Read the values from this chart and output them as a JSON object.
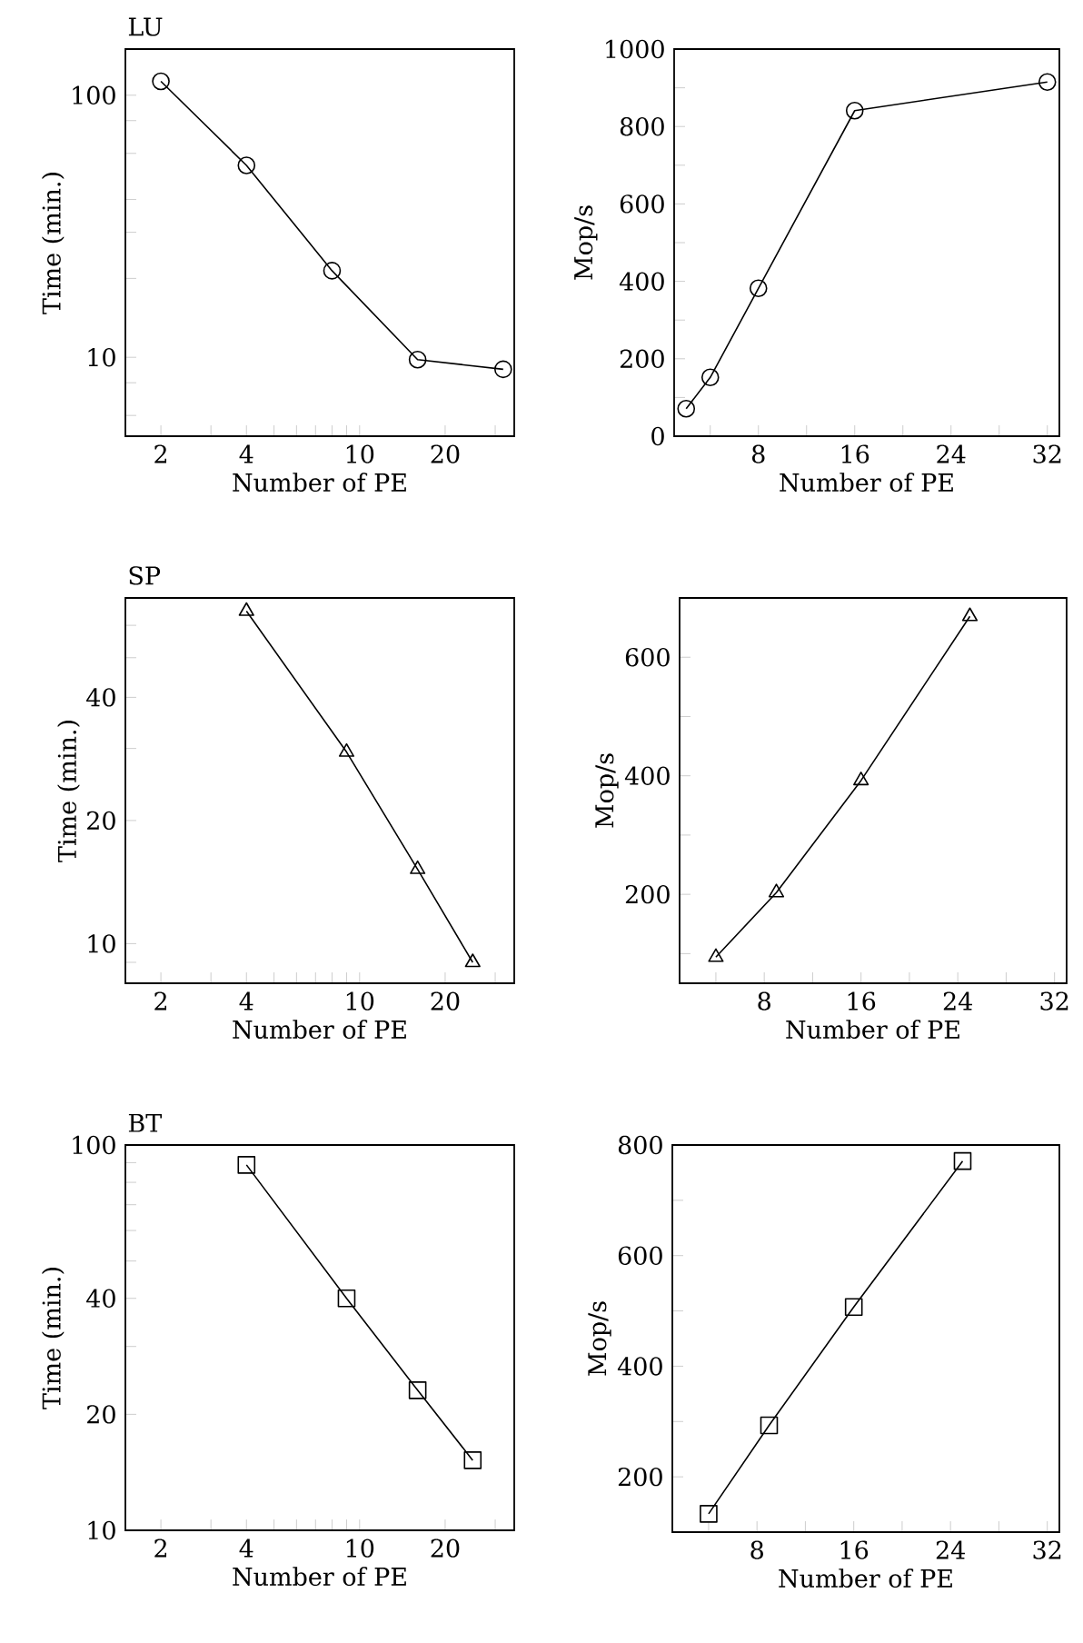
{
  "chart_data": [
    {
      "type": "line",
      "title": "LU",
      "xlabel": "Number of PE",
      "ylabel": "Time (min.)",
      "log": "xy",
      "marker": "circle",
      "x": [
        2,
        4,
        8,
        16,
        32
      ],
      "series": [
        {
          "color": "#000000",
          "values": [
            113,
            54,
            21.4,
            9.8,
            9.0
          ]
        }
      ],
      "xlim": [
        1.5,
        35
      ],
      "ylim": [
        5,
        150
      ],
      "xticks": [
        2,
        {
          "value": 3,
          "label": null
        },
        4,
        {
          "value": 5,
          "label": null
        },
        {
          "value": 6,
          "label": null
        },
        {
          "value": 7,
          "label": null
        },
        {
          "value": 8,
          "label": null
        },
        {
          "value": 9,
          "label": null
        },
        10,
        20,
        {
          "value": 30,
          "label": null
        }
      ],
      "yticks": [
        {
          "value": 6,
          "label": null
        },
        {
          "value": 8,
          "label": null
        },
        10,
        {
          "value": 20,
          "label": null
        },
        {
          "value": 30,
          "label": null
        },
        {
          "value": 40,
          "label": null
        },
        {
          "value": 60,
          "label": null
        },
        {
          "value": 80,
          "label": null
        },
        100
      ]
    },
    {
      "type": "line",
      "xlabel": "Number of PE",
      "ylabel": "Mop/s",
      "marker": "circle",
      "x": [
        2,
        4,
        8,
        16,
        32
      ],
      "series": [
        {
          "color": "#000000",
          "values": [
            71,
            152,
            382,
            841,
            915
          ]
        }
      ],
      "xlim": [
        1,
        33
      ],
      "ylim": [
        0,
        1000
      ],
      "xticks": [
        {
          "value": 4,
          "label": null
        },
        8,
        {
          "value": 12,
          "label": null
        },
        16,
        {
          "value": 20,
          "label": null
        },
        24,
        {
          "value": 28,
          "label": null
        },
        32
      ],
      "yticks": [
        0,
        {
          "value": 100,
          "label": null
        },
        200,
        {
          "value": 300,
          "label": null
        },
        400,
        {
          "value": 500,
          "label": null
        },
        600,
        {
          "value": 700,
          "label": null
        },
        800,
        {
          "value": 900,
          "label": null
        },
        1000
      ]
    },
    {
      "type": "line",
      "title": "SP",
      "xlabel": "Number of PE",
      "ylabel": "Time (min.)",
      "log": "xy",
      "marker": "triangle",
      "x": [
        4,
        9,
        16,
        25
      ],
      "series": [
        {
          "color": "#000000",
          "values": [
            65,
            29.4,
            15.2,
            9.0
          ]
        }
      ],
      "xlim": [
        1.5,
        35
      ],
      "ylim": [
        8,
        70
      ],
      "xticks": [
        2,
        {
          "value": 3,
          "label": null
        },
        4,
        {
          "value": 5,
          "label": null
        },
        {
          "value": 6,
          "label": null
        },
        {
          "value": 7,
          "label": null
        },
        {
          "value": 8,
          "label": null
        },
        {
          "value": 9,
          "label": null
        },
        10,
        20,
        {
          "value": 30,
          "label": null
        }
      ],
      "yticks": [
        {
          "value": 9,
          "label": null
        },
        10,
        20,
        {
          "value": 30,
          "label": null
        },
        40,
        {
          "value": 50,
          "label": null
        },
        {
          "value": 60,
          "label": null
        }
      ]
    },
    {
      "type": "line",
      "xlabel": "Number of PE",
      "ylabel": "Mop/s",
      "marker": "triangle",
      "x": [
        4,
        9,
        16,
        25
      ],
      "series": [
        {
          "color": "#000000",
          "values": [
            94,
            203,
            392,
            669
          ]
        }
      ],
      "xlim": [
        1,
        33
      ],
      "ylim": [
        50,
        700
      ],
      "xticks": [
        {
          "value": 4,
          "label": null
        },
        8,
        {
          "value": 12,
          "label": null
        },
        16,
        {
          "value": 20,
          "label": null
        },
        24,
        {
          "value": 28,
          "label": null
        },
        32
      ],
      "yticks": [
        {
          "value": 100,
          "label": null
        },
        200,
        {
          "value": 300,
          "label": null
        },
        400,
        {
          "value": 500,
          "label": null
        },
        600
      ]
    },
    {
      "type": "line",
      "title": "BT",
      "xlabel": "Number of PE",
      "ylabel": "Time (min.)",
      "log": "xy",
      "marker": "square",
      "x": [
        4,
        9,
        16,
        25
      ],
      "series": [
        {
          "color": "#000000",
          "values": [
            88.8,
            40,
            23.1,
            15.2
          ]
        }
      ],
      "xlim": [
        1.5,
        35
      ],
      "ylim": [
        10,
        100
      ],
      "xticks": [
        2,
        {
          "value": 3,
          "label": null
        },
        4,
        {
          "value": 5,
          "label": null
        },
        {
          "value": 6,
          "label": null
        },
        {
          "value": 7,
          "label": null
        },
        {
          "value": 8,
          "label": null
        },
        {
          "value": 9,
          "label": null
        },
        10,
        20,
        {
          "value": 30,
          "label": null
        }
      ],
      "yticks": [
        10,
        20,
        {
          "value": 30,
          "label": null
        },
        40,
        {
          "value": 50,
          "label": null
        },
        {
          "value": 60,
          "label": null
        },
        {
          "value": 70,
          "label": null
        },
        {
          "value": 80,
          "label": null
        },
        {
          "value": 90,
          "label": null
        },
        100
      ]
    },
    {
      "type": "line",
      "xlabel": "Number of PE",
      "ylabel": "Mop/s",
      "marker": "square",
      "x": [
        4,
        9,
        16,
        25
      ],
      "series": [
        {
          "color": "#000000",
          "values": [
            133,
            293,
            507,
            771
          ]
        }
      ],
      "xlim": [
        1,
        33
      ],
      "ylim": [
        100,
        800
      ],
      "xticks": [
        {
          "value": 4,
          "label": null
        },
        8,
        {
          "value": 12,
          "label": null
        },
        16,
        {
          "value": 20,
          "label": null
        },
        24,
        {
          "value": 28,
          "label": null
        },
        32
      ],
      "yticks": [
        200,
        {
          "value": 300,
          "label": null
        },
        400,
        {
          "value": 500,
          "label": null
        },
        600,
        {
          "value": 700,
          "label": null
        },
        800
      ]
    }
  ]
}
